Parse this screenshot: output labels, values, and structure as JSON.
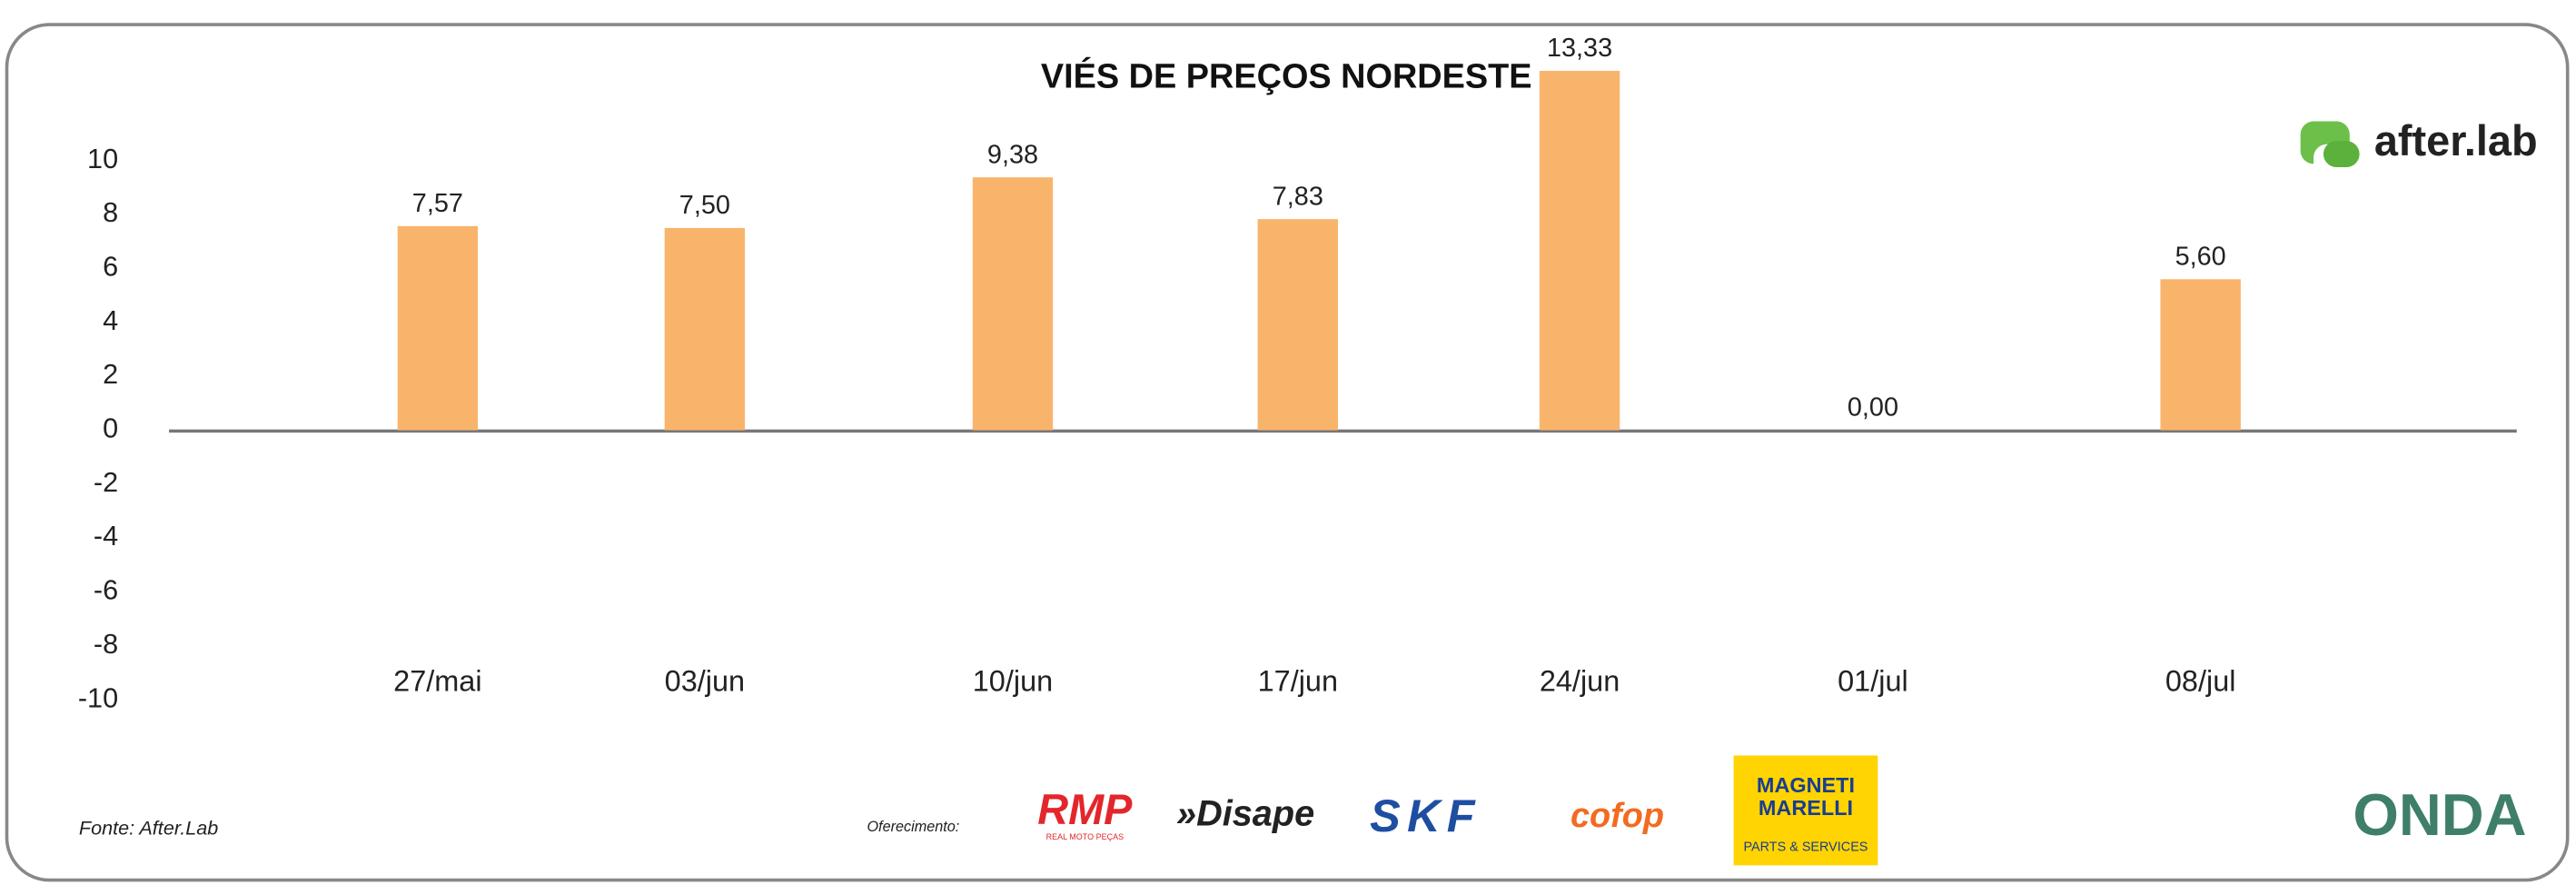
{
  "chart_data": {
    "type": "bar",
    "title": "VIÉS DE PREÇOS NORDESTE",
    "categories": [
      "27/mai",
      "03/jun",
      "10/jun",
      "17/jun",
      "24/jun",
      "01/jul",
      "08/jul"
    ],
    "values": [
      7.57,
      7.5,
      9.38,
      7.83,
      13.33,
      0,
      5.6
    ],
    "value_labels": [
      "7,57",
      "7,50",
      "9,38",
      "7,83",
      "13,33",
      "0,00",
      "5,60"
    ],
    "color": "#f9b46c",
    "ylim": [
      -10,
      10
    ],
    "yticks": [
      -10,
      -8,
      -6,
      -4,
      -2,
      0,
      2,
      4,
      6,
      8,
      10
    ],
    "grid": false
  },
  "source": "Fonte: After.Lab",
  "sponsor_label": "Oferecimento:",
  "brand": "after.lab",
  "logos": {
    "rmp": "RMP",
    "rmp_sub": "REAL MOTO PEÇAS",
    "disape": "»Disape",
    "skf": "SKF",
    "cofop": "cofop",
    "magneti": [
      "MAGNETI",
      "MARELLI"
    ],
    "magneti_sub": "PARTS & SERVICES",
    "onda": "ONDA"
  }
}
